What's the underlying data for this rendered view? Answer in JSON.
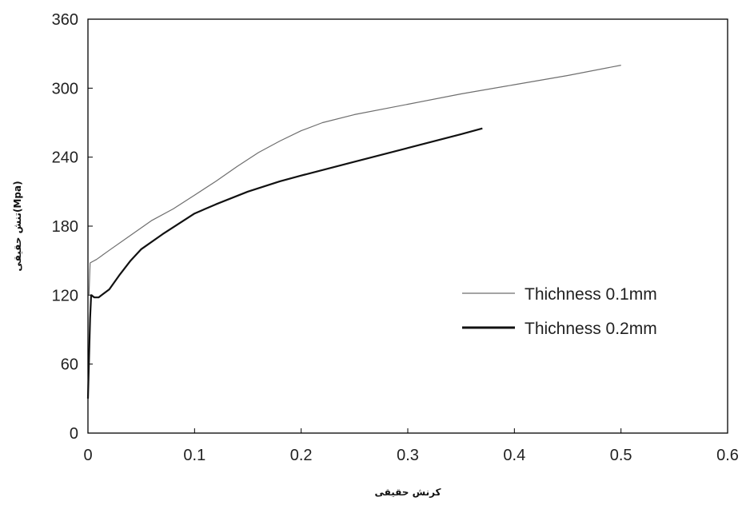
{
  "chart_data": {
    "type": "line",
    "title": "",
    "xlabel": "کرنش حقیقی",
    "ylabel": "تنش حقیقی(Mpa)",
    "xlim": [
      0,
      0.6
    ],
    "ylim": [
      0,
      360
    ],
    "x_ticks": [
      "0",
      "0.1",
      "0.2",
      "0.3",
      "0.4",
      "0.5",
      "0.6"
    ],
    "y_ticks": [
      "0",
      "60",
      "120",
      "180",
      "240",
      "300",
      "360"
    ],
    "grid": false,
    "legend_position": "center-right",
    "series": [
      {
        "name": "Thichness 0.1mm",
        "color": "#6e6e6e",
        "points": [
          [
            0.001,
            120
          ],
          [
            0.002,
            148
          ],
          [
            0.008,
            151
          ],
          [
            0.02,
            159
          ],
          [
            0.04,
            172
          ],
          [
            0.06,
            185
          ],
          [
            0.08,
            195
          ],
          [
            0.1,
            207
          ],
          [
            0.12,
            219
          ],
          [
            0.14,
            232
          ],
          [
            0.16,
            244
          ],
          [
            0.18,
            254
          ],
          [
            0.2,
            263
          ],
          [
            0.22,
            270
          ],
          [
            0.25,
            277
          ],
          [
            0.3,
            286
          ],
          [
            0.35,
            295
          ],
          [
            0.4,
            303
          ],
          [
            0.45,
            311
          ],
          [
            0.5,
            320
          ]
        ]
      },
      {
        "name": "Thichness 0.2mm",
        "color": "#111111",
        "points": [
          [
            0.0,
            30
          ],
          [
            0.002,
            100
          ],
          [
            0.003,
            120
          ],
          [
            0.006,
            118
          ],
          [
            0.01,
            118
          ],
          [
            0.02,
            125
          ],
          [
            0.03,
            138
          ],
          [
            0.04,
            150
          ],
          [
            0.05,
            160
          ],
          [
            0.07,
            173
          ],
          [
            0.1,
            191
          ],
          [
            0.12,
            199
          ],
          [
            0.15,
            210
          ],
          [
            0.18,
            219
          ],
          [
            0.2,
            224
          ],
          [
            0.25,
            236
          ],
          [
            0.3,
            248
          ],
          [
            0.35,
            260
          ],
          [
            0.37,
            265
          ]
        ]
      }
    ]
  }
}
